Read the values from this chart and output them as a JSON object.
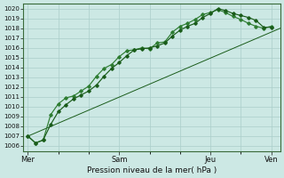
{
  "xlabel": "Pression niveau de la mer( hPa )",
  "bg_color": "#cce8e4",
  "grid_color": "#aaceca",
  "line_color_dark": "#1a5c1a",
  "line_color_mid": "#2e7d32",
  "ylim": [
    1005.5,
    1020.5
  ],
  "ytick_min": 1006,
  "ytick_max": 1020,
  "day_labels": [
    "Mer",
    "Sam",
    "Jeu",
    "Ven"
  ],
  "day_positions": [
    0.0,
    3.0,
    6.0,
    8.0
  ],
  "xlim": [
    -0.15,
    8.3
  ],
  "line1": [
    1007.0,
    1006.3,
    1006.6,
    1008.2,
    1009.5,
    1010.2,
    1010.8,
    1011.2,
    1011.6,
    1012.2,
    1013.1,
    1013.9,
    1014.5,
    1015.2,
    1015.8,
    1015.9,
    1016.0,
    1016.2,
    1016.5,
    1017.2,
    1017.8,
    1018.2,
    1018.5,
    1019.1,
    1019.5,
    1020.0,
    1019.8,
    1019.5,
    1019.3,
    1019.1,
    1018.8,
    1018.1,
    1018.1
  ],
  "line2": [
    1007.0,
    1006.3,
    1006.6,
    1009.2,
    1010.3,
    1010.9,
    1011.1,
    1011.6,
    1012.1,
    1013.1,
    1013.9,
    1014.3,
    1015.1,
    1015.7,
    1015.8,
    1016.0,
    1015.9,
    1016.5,
    1016.6,
    1017.6,
    1018.2,
    1018.5,
    1018.9,
    1019.4,
    1019.6,
    1019.9,
    1019.6,
    1019.2,
    1018.9,
    1018.5,
    1018.2,
    1018.0,
    1018.2
  ],
  "line3_x": [
    0.0,
    8.3
  ],
  "line3_y": [
    1007.0,
    1018.0
  ],
  "n_points": 33,
  "x_total_days": 8.0,
  "ytick_fontsize": 5.0,
  "xtick_fontsize": 6.0,
  "xlabel_fontsize": 6.5
}
